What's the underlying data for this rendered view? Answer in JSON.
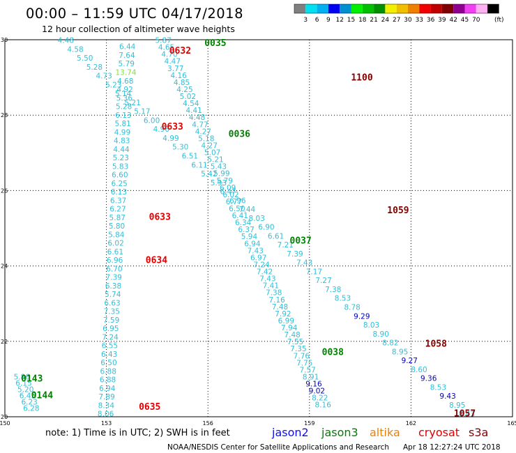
{
  "header": {
    "title": "00:00 – 11:59 UTC 04/17/2018",
    "subtitle": "12 hour collection of altimeter wave heights",
    "unit": "(ft)"
  },
  "legend_scale": {
    "ticks": [
      "3",
      "6",
      "9",
      "12",
      "15",
      "18",
      "21",
      "24",
      "27",
      "30",
      "33",
      "36",
      "39",
      "42",
      "45",
      "70"
    ],
    "colors": [
      "#808080",
      "#00e0f0",
      "#00b0f0",
      "#0000f0",
      "#0090d0",
      "#00f000",
      "#00c000",
      "#009000",
      "#f0f000",
      "#f0c000",
      "#f08000",
      "#f00000",
      "#c00000",
      "#800000",
      "#900090",
      "#f040f0",
      "#ffb0f0",
      "#000000"
    ]
  },
  "footer": {
    "note": "note: 1) Time is in UTC; 2) SWH is in feet",
    "credit": "NOAA/NESDIS Center for Satellite Applications and Research",
    "timestamp": "Apr 18 12:27:24 UTC 2018",
    "satellites": [
      {
        "name": "jason2",
        "color": "#1010e0"
      },
      {
        "name": "jason3",
        "color": "#008000"
      },
      {
        "name": "altika",
        "color": "#f08000"
      },
      {
        "name": "cryosat",
        "color": "#e00000"
      },
      {
        "name": "s3a",
        "color": "#800000"
      }
    ]
  },
  "chart_data": {
    "type": "scatter",
    "xlim": [
      150,
      165
    ],
    "ylim": [
      20,
      30
    ],
    "xticks": [
      "150",
      "153",
      "156",
      "159",
      "162",
      "165"
    ],
    "yticks": [
      "20",
      "22",
      "24",
      "26",
      "28",
      "30"
    ],
    "grid": true,
    "tracks": [
      {
        "name": "track-a",
        "start": [
          153.62,
          29.82
        ],
        "end": [
          152.98,
          20.08
        ],
        "color": "#30c0d8",
        "values": [
          "6.44",
          "7.64",
          "5.79",
          "13.74",
          "4.68",
          "4.92",
          "5.36",
          "5.28",
          "6.13",
          "5.81",
          "4.99",
          "4.83",
          "4.44",
          "5.23",
          "5.83",
          "6.60",
          "6.25",
          "6.13",
          "6.37",
          "6.27",
          "5.87",
          "5.80",
          "5.84",
          "6.02",
          "6.61",
          "6.96",
          "6.70",
          "7.39",
          "6.38",
          "5.74",
          "6.63",
          "7.35",
          "7.59",
          "6.95",
          "7.24",
          "6.55",
          "6.43",
          "6.50",
          "6.88",
          "6.88",
          "6.94",
          "7.89",
          "8.34",
          "8.06"
        ]
      },
      {
        "name": "track-b",
        "start": [
          154.68,
          29.99
        ],
        "end": [
          159.4,
          20.32
        ],
        "color": "#30c0d8",
        "values": [
          "5.87",
          "4.65",
          "4.70",
          "4.47",
          "3.77",
          "4.16",
          "4.85",
          "4.25",
          "5.02",
          "4.54",
          "4.41",
          "4.48",
          "4.77",
          "4.27",
          "5.18",
          "4.27",
          "5.07",
          "5.21",
          "5.43",
          "5.99",
          "5.79",
          "6.09",
          "6.02",
          "6.77",
          "6.50",
          "6.41",
          "6.34",
          "6.37",
          "5.94",
          "6.94",
          "7.43",
          "6.97",
          "7.24",
          "7.42",
          "7.43",
          "7.41",
          "7.38",
          "7.16",
          "7.48",
          "7.92",
          "6.99",
          "7.94",
          "7.48",
          "7.55",
          "7.35",
          "7.76",
          "7.75",
          "7.57",
          "8.91",
          "9.16",
          "9.02",
          "8.22",
          "8.16"
        ]
      },
      {
        "name": "track-c",
        "start": [
          151.8,
          29.99
        ],
        "end": [
          163.65,
          20.08
        ],
        "color": "#30c0d8",
        "values": [
          "4.48",
          "4.58",
          "5.50",
          "5.28",
          "4.73",
          "5.23",
          "5.14",
          "5.21",
          "5.17",
          "6.00",
          "4.96",
          "4.99",
          "5.30",
          "6.51",
          "6.11",
          "5.42",
          "5.93",
          "6.47",
          "6.96",
          "7.44",
          "8.03",
          "6.90",
          "6.61",
          "7.21",
          "7.39",
          "7.43",
          "7.17",
          "7.27",
          "7.38",
          "8.53",
          "8.78",
          "9.29",
          "8.03",
          "8.90",
          "8.82",
          "8.95",
          "9.27",
          "8.60",
          "9.36",
          "8.53",
          "9.43",
          "8.95",
          "8.43"
        ]
      },
      {
        "name": "track-d",
        "start": [
          150.5,
          21.06
        ],
        "end": [
          150.78,
          20.23
        ],
        "color": "#30c0d8",
        "values": [
          "5.86",
          "6.15",
          "5.20",
          "6.45",
          "6.23",
          "6.28"
        ]
      }
    ],
    "value_colors": {
      "13.74": "#80e040",
      "9.16": "#0000c0",
      "9.02": "#0000c0",
      "9.29": "#0000c0",
      "9.27": "#0000c0",
      "9.36": "#0000c0",
      "9.43": "#0000c0"
    },
    "time_labels": [
      {
        "text": "0035",
        "x": 156.22,
        "y": 29.93,
        "color": "#008000"
      },
      {
        "text": "0632",
        "x": 155.18,
        "y": 29.72,
        "color": "#e00000"
      },
      {
        "text": "1100",
        "x": 160.55,
        "y": 29.01,
        "color": "#800000"
      },
      {
        "text": "0633",
        "x": 154.95,
        "y": 27.71,
        "color": "#e00000"
      },
      {
        "text": "0036",
        "x": 156.93,
        "y": 27.51,
        "color": "#008000"
      },
      {
        "text": "1059",
        "x": 161.62,
        "y": 25.49,
        "color": "#800000"
      },
      {
        "text": "0633",
        "x": 154.58,
        "y": 25.31,
        "color": "#e00000"
      },
      {
        "text": "0037",
        "x": 158.74,
        "y": 24.69,
        "color": "#008000"
      },
      {
        "text": "0634",
        "x": 154.48,
        "y": 24.17,
        "color": "#e00000"
      },
      {
        "text": "1058",
        "x": 162.74,
        "y": 21.95,
        "color": "#800000"
      },
      {
        "text": "0038",
        "x": 159.69,
        "y": 21.73,
        "color": "#008000"
      },
      {
        "text": "0143",
        "x": 150.8,
        "y": 21.03,
        "color": "#008000"
      },
      {
        "text": "0144",
        "x": 151.1,
        "y": 20.58,
        "color": "#008000"
      },
      {
        "text": "0635",
        "x": 154.28,
        "y": 20.28,
        "color": "#e00000"
      },
      {
        "text": "1057",
        "x": 163.59,
        "y": 20.1,
        "color": "#800000"
      }
    ]
  }
}
